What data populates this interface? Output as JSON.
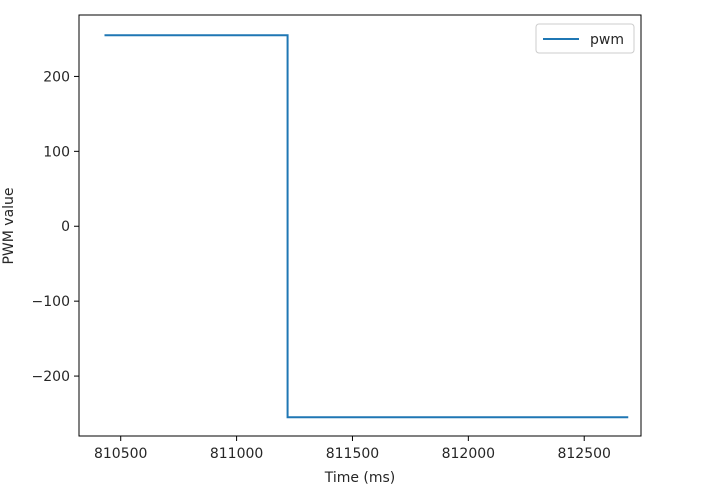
{
  "chart_data": {
    "type": "line",
    "title": "",
    "xlabel": "Time (ms)",
    "ylabel": "PWM value",
    "xlim": [
      810320,
      812745
    ],
    "ylim": [
      -280,
      282
    ],
    "xticks": [
      810500,
      811000,
      811500,
      812000,
      812500
    ],
    "xtick_labels": [
      "810500",
      "811000",
      "811500",
      "812000",
      "812500"
    ],
    "yticks": [
      200,
      100,
      0,
      -100,
      -200
    ],
    "ytick_labels": [
      "200",
      "100",
      "0",
      "−100",
      "−200"
    ],
    "grid": false,
    "legend_position": "top-right",
    "series": [
      {
        "name": "pwm",
        "color": "#1f77b4",
        "x": [
          810430,
          811220,
          811220,
          812690
        ],
        "y": [
          255,
          255,
          -255,
          -255
        ]
      }
    ]
  }
}
